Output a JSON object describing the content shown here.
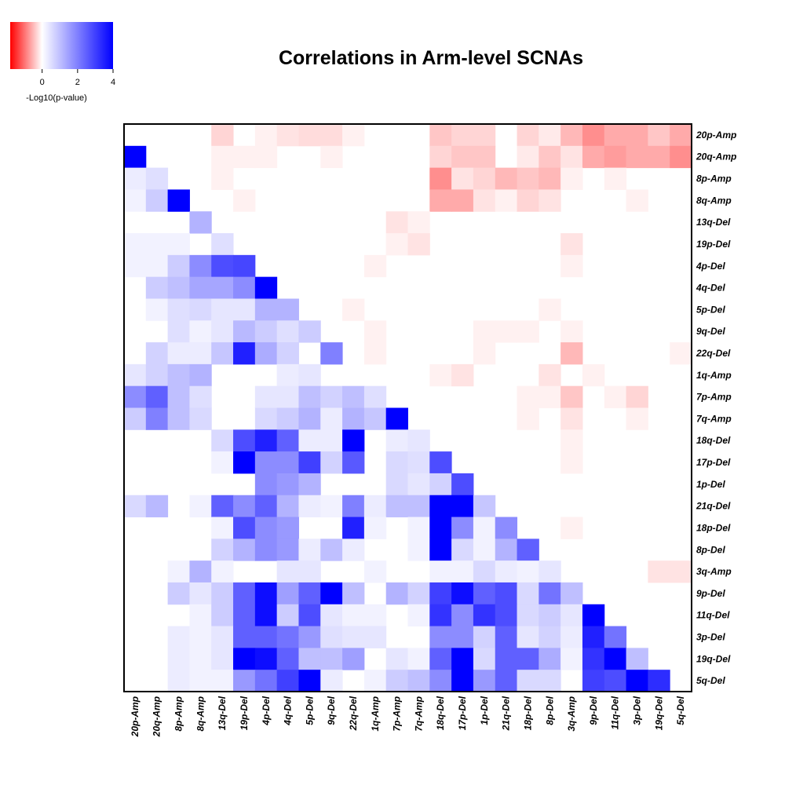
{
  "chart_data": {
    "type": "heatmap",
    "title": "Correlations in Arm-level SCNAs",
    "labels": [
      "20p-Amp",
      "20q-Amp",
      "8p-Amp",
      "8q-Amp",
      "13q-Del",
      "19p-Del",
      "4p-Del",
      "4q-Del",
      "5p-Del",
      "9q-Del",
      "22q-Del",
      "1q-Amp",
      "7p-Amp",
      "7q-Amp",
      "18q-Del",
      "17p-Del",
      "1p-Del",
      "21q-Del",
      "18p-Del",
      "8p-Del",
      "3q-Amp",
      "9p-Del",
      "11q-Del",
      "3p-Del",
      "19q-Del",
      "5q-Del"
    ],
    "legend": {
      "title": "-Log10(p-value)",
      "ticks": [
        0,
        2,
        4
      ],
      "range": [
        -1.8,
        4
      ],
      "low_color": "#ff0000",
      "mid_color": "#ffffff",
      "high_color": "#0000ff"
    },
    "matrix": [
      [
        0,
        0,
        0,
        0,
        -0.3,
        0,
        -0.1,
        -0.2,
        -0.25,
        -0.25,
        -0.1,
        0,
        0,
        0,
        -0.4,
        -0.3,
        -0.3,
        0,
        -0.3,
        -0.15,
        -0.5,
        -0.8,
        -0.6,
        -0.6,
        -0.4,
        -0.6
      ],
      [
        4,
        0,
        0,
        0,
        -0.1,
        -0.1,
        -0.1,
        0,
        0,
        -0.1,
        0,
        0,
        0,
        0,
        -0.3,
        -0.4,
        -0.4,
        0,
        -0.15,
        -0.4,
        -0.2,
        -0.6,
        -0.7,
        -0.6,
        -0.6,
        -0.8
      ],
      [
        0.3,
        0.5,
        0,
        0,
        -0.1,
        0,
        0,
        0,
        0,
        0,
        0,
        0,
        0,
        0,
        -0.8,
        -0.2,
        -0.3,
        -0.5,
        -0.4,
        -0.5,
        -0.1,
        0,
        -0.1,
        0,
        0,
        0
      ],
      [
        0.2,
        0.8,
        4,
        0,
        0,
        -0.1,
        0,
        0,
        0,
        0,
        0,
        0,
        0,
        0,
        -0.6,
        -0.6,
        -0.2,
        -0.1,
        -0.3,
        -0.2,
        0,
        0,
        0,
        -0.1,
        0,
        0
      ],
      [
        0,
        0,
        0,
        1.2,
        0,
        0,
        0,
        0,
        0,
        0,
        0,
        0,
        -0.2,
        -0.1,
        0,
        0,
        0,
        0,
        0,
        0,
        0,
        0,
        0,
        0,
        0,
        0
      ],
      [
        0.2,
        0.2,
        0.2,
        0,
        0.5,
        0,
        0,
        0,
        0,
        0,
        0,
        0,
        -0.1,
        -0.2,
        0,
        0,
        0,
        0,
        0,
        0,
        -0.2,
        0,
        0,
        0,
        0,
        0
      ],
      [
        0.2,
        0.2,
        0.8,
        1.8,
        2.8,
        2.9,
        0,
        0,
        0,
        0,
        0,
        -0.1,
        0,
        0,
        0,
        0,
        0,
        0,
        0,
        0,
        -0.1,
        0,
        0,
        0,
        0,
        0
      ],
      [
        0,
        0.8,
        1,
        1.4,
        1.4,
        1.8,
        4,
        0,
        0,
        0,
        0,
        0,
        0,
        0,
        0,
        0,
        0,
        0,
        0,
        0,
        0,
        0,
        0,
        0,
        0,
        0
      ],
      [
        0,
        0.2,
        0.5,
        0.6,
        0.4,
        0.4,
        1.2,
        1.2,
        0,
        0,
        -0.1,
        0,
        0,
        0,
        0,
        0,
        0,
        0,
        0,
        -0.1,
        0,
        0,
        0,
        0,
        0,
        0
      ],
      [
        0,
        0,
        0.5,
        0.2,
        0.4,
        1.1,
        0.8,
        0.5,
        0.8,
        0,
        0,
        -0.1,
        0,
        0,
        0,
        0,
        -0.1,
        -0.1,
        -0.1,
        0,
        -0.1,
        0,
        0,
        0,
        0,
        0
      ],
      [
        0,
        0.7,
        0.3,
        0.3,
        0.9,
        3.5,
        1.3,
        0.7,
        0,
        2,
        0,
        -0.1,
        0,
        0,
        0,
        0,
        -0.1,
        0,
        0,
        0,
        -0.5,
        0,
        0,
        0,
        0,
        -0.1
      ],
      [
        0.4,
        0.7,
        1,
        1.2,
        0,
        0,
        0,
        0.3,
        0.4,
        0,
        0,
        0,
        0,
        0,
        -0.1,
        -0.2,
        0,
        0,
        0,
        -0.2,
        0,
        -0.1,
        0,
        0,
        0,
        0
      ],
      [
        1.8,
        2.5,
        1,
        0.5,
        0,
        0,
        0.4,
        0.4,
        1,
        0.7,
        1,
        0.5,
        0,
        0,
        0,
        0,
        0,
        0,
        -0.1,
        -0.1,
        -0.4,
        0,
        -0.1,
        -0.3,
        0,
        0
      ],
      [
        0.8,
        2,
        1,
        0.6,
        0,
        0,
        0.6,
        0.8,
        1.2,
        0.3,
        1.2,
        0.9,
        4,
        0,
        0,
        0,
        0,
        0,
        -0.1,
        0,
        -0.2,
        0,
        0,
        -0.1,
        0,
        0
      ],
      [
        0,
        0,
        0,
        0,
        0.6,
        2.8,
        3.5,
        2.5,
        0.3,
        0.3,
        4,
        0,
        0.3,
        0.4,
        0,
        0,
        0,
        0,
        0,
        0,
        -0.1,
        0,
        0,
        0,
        0,
        0
      ],
      [
        0,
        0,
        0,
        0,
        0.2,
        4,
        1.8,
        1.8,
        3,
        0.7,
        2.6,
        0,
        0.6,
        0.5,
        2.8,
        0,
        0,
        0,
        0,
        0,
        -0.1,
        0,
        0,
        0,
        0,
        0
      ],
      [
        0,
        0,
        0,
        0,
        0,
        0,
        1.8,
        1.6,
        1.2,
        0,
        0,
        0,
        0.6,
        0.4,
        0.7,
        2.8,
        0,
        0,
        0,
        0,
        0,
        0,
        0,
        0,
        0,
        0
      ],
      [
        0.6,
        1.1,
        0,
        0.2,
        2.5,
        1.8,
        2.5,
        1.2,
        0.3,
        0.2,
        2,
        0.3,
        1,
        1,
        4,
        4,
        0.9,
        0,
        0,
        0,
        0,
        0,
        0,
        0,
        0,
        0
      ],
      [
        0,
        0,
        0,
        0,
        0.2,
        2.8,
        1.8,
        1.6,
        0,
        0,
        3.5,
        0.2,
        0,
        0.2,
        4,
        1.8,
        0.2,
        1.8,
        0,
        0,
        -0.1,
        0,
        0,
        0,
        0,
        0
      ],
      [
        0,
        0,
        0,
        0,
        0.7,
        1.2,
        1.8,
        1.6,
        0.3,
        1,
        0.3,
        0,
        0,
        0.2,
        4,
        0.6,
        0.2,
        1.2,
        2.5,
        0,
        0,
        0,
        0,
        0,
        0,
        0
      ],
      [
        0,
        0,
        0.2,
        1.2,
        0.2,
        0,
        0,
        0.4,
        0.4,
        0,
        0,
        0.2,
        0,
        0,
        0.2,
        0.2,
        0.6,
        0.3,
        0.2,
        0.4,
        0,
        0,
        0,
        0,
        -0.2,
        -0.2
      ],
      [
        0,
        0,
        0.8,
        0.4,
        0.8,
        2.5,
        3.8,
        1.5,
        2.5,
        4,
        1,
        0,
        1.2,
        0.7,
        3,
        3.8,
        2.5,
        2.8,
        0.6,
        2.2,
        1,
        0,
        0,
        0,
        0,
        0
      ],
      [
        0,
        0,
        0,
        0.2,
        0.8,
        2.5,
        3.8,
        0.8,
        2.8,
        0.4,
        0.2,
        0.2,
        0,
        0.2,
        3.2,
        1.8,
        3.2,
        2.8,
        0.6,
        0.8,
        0.4,
        4,
        0,
        0,
        0,
        0
      ],
      [
        0,
        0,
        0.3,
        0.2,
        0.4,
        2.5,
        2.5,
        2.2,
        1.6,
        0.5,
        0.4,
        0.4,
        0,
        0,
        1.8,
        1.8,
        0.7,
        2.5,
        0.4,
        0.7,
        0.3,
        3.5,
        2.2,
        0,
        0,
        0
      ],
      [
        0,
        0,
        0.3,
        0.2,
        0.4,
        4,
        3.8,
        2.5,
        1,
        1,
        1.5,
        0,
        0.4,
        0.2,
        2.5,
        4,
        0.6,
        2.5,
        2.5,
        1.3,
        0.2,
        3.2,
        4,
        1,
        0,
        0
      ],
      [
        0,
        0,
        0.3,
        0.2,
        0.2,
        1.6,
        2.2,
        3,
        4,
        0.3,
        0,
        0.2,
        0.8,
        1,
        1.8,
        4,
        1.6,
        2.5,
        0.6,
        0.6,
        0,
        3,
        2.8,
        4,
        3.3,
        0
      ]
    ]
  }
}
